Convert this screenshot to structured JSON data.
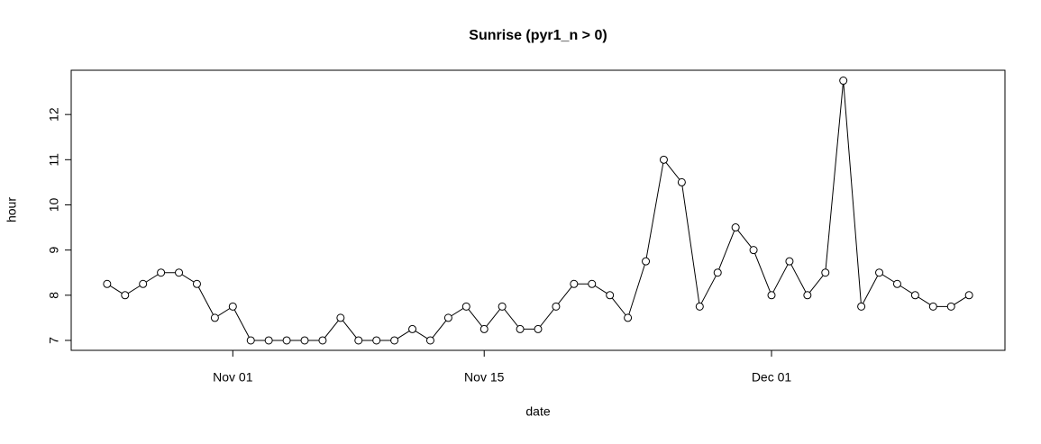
{
  "chart_data": {
    "type": "line",
    "title": "Sunrise (pyr1_n > 0)",
    "x_label": "date",
    "y_label": "hour",
    "x": [
      "10-25",
      "10-26",
      "10-27",
      "10-28",
      "10-29",
      "10-30",
      "10-31",
      "11-01",
      "11-02",
      "11-03",
      "11-04",
      "11-05",
      "11-06",
      "11-07",
      "11-08",
      "11-09",
      "11-10",
      "11-11",
      "11-12",
      "11-13",
      "11-14",
      "11-15",
      "11-16",
      "11-17",
      "11-18",
      "11-19",
      "11-20",
      "11-21",
      "11-22",
      "11-23",
      "11-24",
      "11-25",
      "11-26",
      "11-27",
      "11-28",
      "11-29",
      "11-30",
      "12-01",
      "12-02",
      "12-03",
      "12-04",
      "12-05",
      "12-06",
      "12-07",
      "12-08",
      "12-09",
      "12-10",
      "12-11",
      "12-12"
    ],
    "series": [
      {
        "color": "#000000",
        "values": [
          8.25,
          8,
          8.25,
          8.5,
          8.5,
          8.25,
          7.5,
          7.75,
          7,
          7,
          7,
          7,
          7,
          7.5,
          7,
          7,
          7,
          7.25,
          7,
          7.5,
          7.75,
          7.25,
          7.75,
          7.25,
          7.25,
          7.75,
          8.25,
          8.25,
          8,
          7.5,
          8.75,
          11,
          10.5,
          7.75,
          8.5,
          9.5,
          9,
          8,
          8.75,
          8,
          8.5,
          12.75,
          7.75,
          8.5,
          8.25,
          8,
          7.75,
          7.75,
          8
        ]
      }
    ],
    "xlim": [
      "10-23",
      "12-14"
    ],
    "xticks": [
      {
        "value": "11-01",
        "label": "Nov 01"
      },
      {
        "value": "11-15",
        "label": "Nov 15"
      },
      {
        "value": "12-01",
        "label": "Dec 01"
      }
    ],
    "ylim": [
      6.78,
      12.98
    ],
    "yticks": [
      7,
      8,
      9,
      10,
      11,
      12
    ]
  }
}
